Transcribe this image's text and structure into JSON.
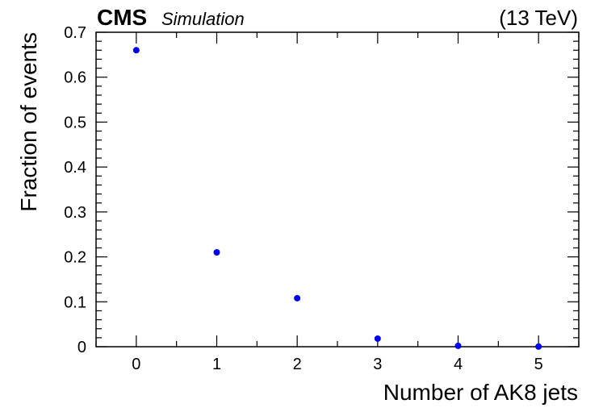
{
  "chart_data": {
    "type": "scatter",
    "header": {
      "experiment": "CMS",
      "label": "Simulation",
      "energy": "(13 TeV)"
    },
    "xlabel": "Number of AK8 jets",
    "ylabel": "Fraction of events",
    "xlim": [
      -0.5,
      5.5
    ],
    "ylim": [
      0,
      0.7
    ],
    "xticks": [
      "0",
      "1",
      "2",
      "3",
      "4",
      "5"
    ],
    "yticks": [
      "0",
      "0.1",
      "0.2",
      "0.3",
      "0.4",
      "0.5",
      "0.6",
      "0.7"
    ],
    "grid": false,
    "marker_color": "#0000ee",
    "series": [
      {
        "x": [
          0,
          1,
          2,
          3,
          4,
          5
        ],
        "y": [
          0.66,
          0.21,
          0.108,
          0.018,
          0.002,
          0.0003
        ]
      }
    ]
  }
}
